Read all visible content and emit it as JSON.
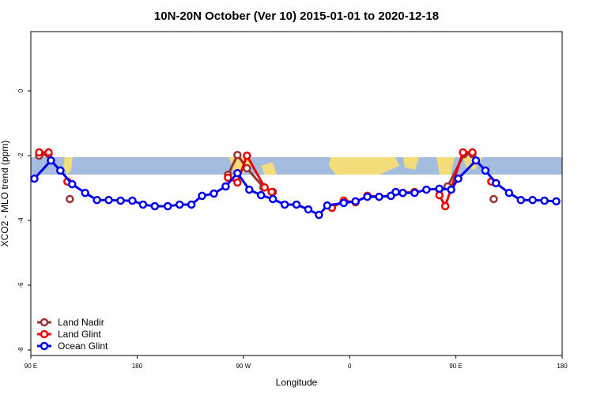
{
  "chart_data": {
    "type": "line",
    "title": "10N-20N October (Ver 10)   2015-01-01 to 2020-12-18",
    "x_label": "Longitude",
    "y_label": "XCO2 - MLO trend (ppm)",
    "xlim": [
      90,
      540
    ],
    "ylim": [
      -8.17,
      1.83
    ],
    "xticks": [
      {
        "value": 90,
        "label": "90 E"
      },
      {
        "value": 180,
        "label": "180"
      },
      {
        "value": 270,
        "label": "90 W"
      },
      {
        "value": 360,
        "label": "0"
      },
      {
        "value": 450,
        "label": "90 E"
      },
      {
        "value": 540,
        "label": "180"
      }
    ],
    "yticks": [
      0,
      -2,
      -4,
      -6,
      -8
    ],
    "legend": "bottom-left",
    "series": [
      {
        "name": "Land Nadir",
        "color": "#993333",
        "x": [
          97,
          105,
          null,
          123,
          null,
          257,
          265,
          273,
          287,
          295,
          null,
          436,
          443,
          457,
          464,
          null,
          482
        ],
        "values": [
          -2.0,
          -1.95,
          null,
          -3.34,
          null,
          -2.59,
          -1.98,
          -2.39,
          -2.98,
          -3.12,
          null,
          -3.05,
          -2.95,
          -1.95,
          -1.95,
          null,
          -3.34
        ]
      },
      {
        "name": "Land Glint",
        "color": "#ee0000",
        "x": [
          97,
          105,
          null,
          121,
          null,
          257,
          265,
          273,
          288,
          294,
          null,
          345,
          355,
          365,
          375,
          385,
          395,
          405,
          415,
          null,
          436,
          441,
          456,
          464,
          null,
          480
        ],
        "values": [
          -1.9,
          -1.9,
          null,
          -2.8,
          null,
          -2.68,
          -2.83,
          -2.0,
          -2.98,
          -3.12,
          null,
          -3.61,
          -3.39,
          -3.44,
          -3.24,
          -3.27,
          -3.24,
          -3.15,
          -3.12,
          null,
          -3.22,
          -3.56,
          -1.9,
          -1.9,
          null,
          -2.8
        ]
      },
      {
        "name": "Ocean Glint",
        "color": "#0000ee",
        "x": [
          93,
          107,
          115,
          125,
          136,
          146,
          156,
          166,
          176,
          185,
          195,
          206,
          216,
          226,
          235,
          245,
          255,
          265,
          275,
          285,
          295,
          305,
          315,
          325,
          334,
          341,
          355,
          365,
          375,
          385,
          395,
          399,
          405,
          415,
          425,
          436,
          446,
          452,
          467,
          475,
          484,
          495,
          505,
          515,
          525,
          535
        ],
        "values": [
          -2.71,
          -2.15,
          -2.46,
          -2.88,
          -3.15,
          -3.37,
          -3.37,
          -3.39,
          -3.39,
          -3.51,
          -3.56,
          -3.56,
          -3.51,
          -3.51,
          -3.24,
          -3.17,
          -2.95,
          -2.54,
          -3.05,
          -3.22,
          -3.34,
          -3.51,
          -3.51,
          -3.66,
          -3.83,
          -3.54,
          -3.46,
          -3.41,
          -3.27,
          -3.27,
          -3.24,
          -3.12,
          -3.15,
          -3.15,
          -3.05,
          -3.02,
          -3.05,
          -2.71,
          -2.15,
          -2.46,
          -2.85,
          -3.15,
          -3.37,
          -3.37,
          -3.39,
          -3.41
        ]
      }
    ]
  }
}
